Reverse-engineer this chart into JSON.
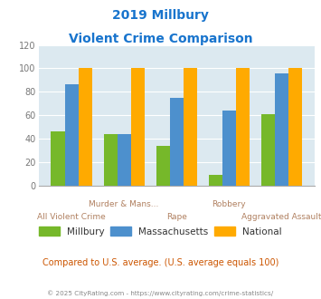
{
  "title_line1": "2019 Millbury",
  "title_line2": "Violent Crime Comparison",
  "title_color": "#1874CD",
  "categories": [
    "All Violent Crime",
    "Murder & Mans...",
    "Rape",
    "Robbery",
    "Aggravated Assault"
  ],
  "millbury": [
    46,
    44,
    34,
    9,
    61
  ],
  "massachusetts": [
    86,
    44,
    75,
    64,
    96
  ],
  "national": [
    100,
    100,
    100,
    100,
    100
  ],
  "millbury_color": "#76b82a",
  "massachusetts_color": "#4d90cd",
  "national_color": "#ffaa00",
  "ylim": [
    0,
    120
  ],
  "yticks": [
    0,
    20,
    40,
    60,
    80,
    100,
    120
  ],
  "bg_color": "#dce9f0",
  "subtitle": "Compared to U.S. average. (U.S. average equals 100)",
  "subtitle_color": "#cc5500",
  "footer": "© 2025 CityRating.com - https://www.cityrating.com/crime-statistics/",
  "footer_color": "#888888",
  "xlabel_top_color": "#b08060",
  "xlabel_bot_color": "#b08060",
  "top_labels": [
    "",
    "Murder & Mans...",
    "",
    "Robbery",
    ""
  ],
  "bottom_labels": [
    "All Violent Crime",
    "",
    "Rape",
    "",
    "Aggravated Assault"
  ]
}
